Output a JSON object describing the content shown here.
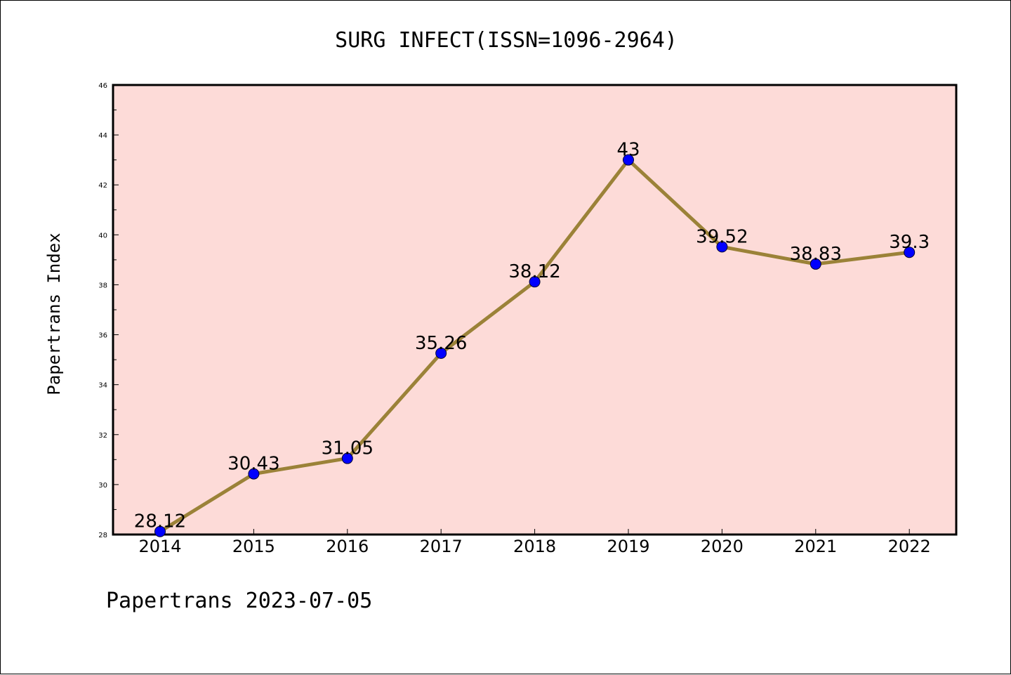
{
  "chart_data": {
    "type": "line",
    "title": "SURG INFECT(ISSN=1096-2964)",
    "xlabel": "",
    "ylabel": "Papertrans Index",
    "categories": [
      "2014",
      "2015",
      "2016",
      "2017",
      "2018",
      "2019",
      "2020",
      "2021",
      "2022"
    ],
    "series": [
      {
        "values": [
          28.12,
          30.43,
          31.05,
          35.26,
          38.12,
          43,
          39.52,
          38.83,
          39.3
        ],
        "data_labels": [
          "28.12",
          "30.43",
          "31.05",
          "35.26",
          "38.12",
          "43",
          "39.52",
          "38.83",
          "39.3"
        ],
        "line_color": "#9b8238",
        "marker_color": "#0000ff"
      }
    ],
    "ylim": [
      28,
      46
    ],
    "yticks": [
      "28",
      "30",
      "32",
      "34",
      "36",
      "38",
      "40",
      "42",
      "44",
      "46"
    ],
    "plot_background": "#fddbd8",
    "grid": false,
    "legend": "none"
  },
  "footer": {
    "text": "Papertrans 2023-07-05"
  }
}
